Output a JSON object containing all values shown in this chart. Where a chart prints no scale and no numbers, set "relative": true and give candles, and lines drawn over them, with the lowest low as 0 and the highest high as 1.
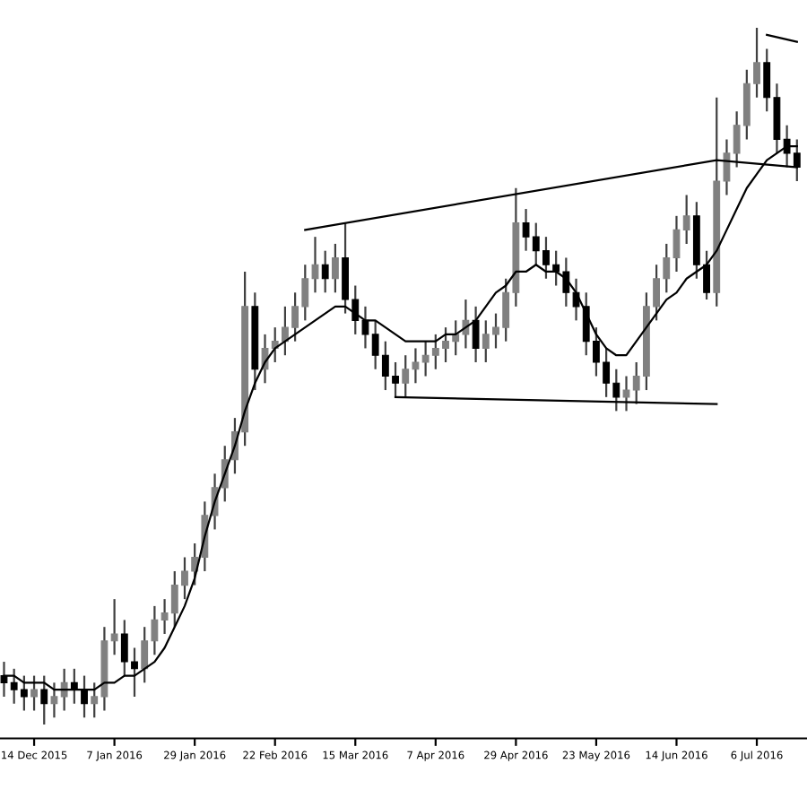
{
  "chart_data": {
    "type": "candlestick",
    "relative": true,
    "categories": [
      null,
      null,
      null,
      "14 Dec 2015",
      null,
      null,
      null,
      null,
      null,
      null,
      null,
      "7 Jan 2016",
      null,
      null,
      null,
      null,
      null,
      null,
      null,
      "29 Jan 2016",
      null,
      null,
      null,
      null,
      null,
      null,
      null,
      "22 Feb 2016",
      null,
      null,
      null,
      null,
      null,
      null,
      null,
      "15 Mar 2016",
      null,
      null,
      null,
      null,
      null,
      null,
      null,
      "7 Apr 2016",
      null,
      null,
      null,
      null,
      null,
      null,
      null,
      "29 Apr 2016",
      null,
      null,
      null,
      null,
      null,
      null,
      null,
      "23 May 2016",
      null,
      null,
      null,
      null,
      null,
      null,
      null,
      "14 Jun 2016",
      null,
      null,
      null,
      null,
      null,
      null,
      null,
      "6 Jul 2016",
      null,
      null,
      null,
      null
    ],
    "ohlc": [
      [
        0.07,
        0.09,
        0.04,
        0.06
      ],
      [
        0.06,
        0.08,
        0.03,
        0.05
      ],
      [
        0.05,
        0.07,
        0.02,
        0.04
      ],
      [
        0.04,
        0.07,
        0.02,
        0.05
      ],
      [
        0.05,
        0.07,
        0,
        0.03
      ],
      [
        0.03,
        0.06,
        0.01,
        0.04
      ],
      [
        0.04,
        0.08,
        0.02,
        0.06
      ],
      [
        0.06,
        0.08,
        0.03,
        0.05
      ],
      [
        0.05,
        0.07,
        0.01,
        0.03
      ],
      [
        0.03,
        0.06,
        0.01,
        0.04
      ],
      [
        0.04,
        0.14,
        0.02,
        0.12
      ],
      [
        0.12,
        0.18,
        0.1,
        0.13
      ],
      [
        0.13,
        0.15,
        0.07,
        0.09
      ],
      [
        0.09,
        0.11,
        0.04,
        0.08
      ],
      [
        0.08,
        0.14,
        0.06,
        0.12
      ],
      [
        0.12,
        0.17,
        0.1,
        0.15
      ],
      [
        0.15,
        0.18,
        0.13,
        0.16
      ],
      [
        0.16,
        0.22,
        0.14,
        0.2
      ],
      [
        0.2,
        0.24,
        0.18,
        0.22
      ],
      [
        0.22,
        0.26,
        0.2,
        0.24
      ],
      [
        0.24,
        0.32,
        0.22,
        0.3
      ],
      [
        0.3,
        0.36,
        0.28,
        0.34
      ],
      [
        0.34,
        0.4,
        0.32,
        0.38
      ],
      [
        0.38,
        0.44,
        0.36,
        0.42
      ],
      [
        0.42,
        0.65,
        0.4,
        0.6
      ],
      [
        0.6,
        0.62,
        0.48,
        0.51
      ],
      [
        0.51,
        0.56,
        0.49,
        0.54
      ],
      [
        0.54,
        0.57,
        0.52,
        0.55
      ],
      [
        0.55,
        0.6,
        0.53,
        0.57
      ],
      [
        0.57,
        0.62,
        0.55,
        0.6
      ],
      [
        0.6,
        0.66,
        0.58,
        0.64
      ],
      [
        0.64,
        0.7,
        0.62,
        0.66
      ],
      [
        0.66,
        0.68,
        0.62,
        0.64
      ],
      [
        0.64,
        0.69,
        0.62,
        0.67
      ],
      [
        0.67,
        0.72,
        0.59,
        0.61
      ],
      [
        0.61,
        0.63,
        0.56,
        0.58
      ],
      [
        0.58,
        0.6,
        0.54,
        0.56
      ],
      [
        0.56,
        0.58,
        0.51,
        0.53
      ],
      [
        0.53,
        0.55,
        0.48,
        0.5
      ],
      [
        0.5,
        0.52,
        0.47,
        0.49
      ],
      [
        0.49,
        0.53,
        0.47,
        0.51
      ],
      [
        0.51,
        0.54,
        0.49,
        0.52
      ],
      [
        0.52,
        0.55,
        0.5,
        0.53
      ],
      [
        0.53,
        0.56,
        0.51,
        0.54
      ],
      [
        0.54,
        0.57,
        0.52,
        0.55
      ],
      [
        0.55,
        0.58,
        0.53,
        0.56
      ],
      [
        0.56,
        0.61,
        0.54,
        0.58
      ],
      [
        0.58,
        0.6,
        0.52,
        0.54
      ],
      [
        0.54,
        0.58,
        0.52,
        0.56
      ],
      [
        0.56,
        0.59,
        0.54,
        0.57
      ],
      [
        0.57,
        0.64,
        0.55,
        0.62
      ],
      [
        0.62,
        0.77,
        0.6,
        0.72
      ],
      [
        0.72,
        0.74,
        0.68,
        0.7
      ],
      [
        0.7,
        0.72,
        0.66,
        0.68
      ],
      [
        0.68,
        0.7,
        0.64,
        0.66
      ],
      [
        0.66,
        0.68,
        0.63,
        0.65
      ],
      [
        0.65,
        0.67,
        0.6,
        0.62
      ],
      [
        0.62,
        0.64,
        0.58,
        0.6
      ],
      [
        0.6,
        0.62,
        0.53,
        0.55
      ],
      [
        0.55,
        0.57,
        0.5,
        0.52
      ],
      [
        0.52,
        0.54,
        0.47,
        0.49
      ],
      [
        0.49,
        0.51,
        0.45,
        0.47
      ],
      [
        0.47,
        0.5,
        0.45,
        0.48
      ],
      [
        0.48,
        0.52,
        0.46,
        0.5
      ],
      [
        0.5,
        0.62,
        0.48,
        0.6
      ],
      [
        0.6,
        0.66,
        0.58,
        0.64
      ],
      [
        0.64,
        0.69,
        0.62,
        0.67
      ],
      [
        0.67,
        0.73,
        0.65,
        0.71
      ],
      [
        0.71,
        0.76,
        0.69,
        0.73
      ],
      [
        0.73,
        0.75,
        0.64,
        0.66
      ],
      [
        0.66,
        0.68,
        0.61,
        0.62
      ],
      [
        0.62,
        0.9,
        0.6,
        0.78
      ],
      [
        0.78,
        0.84,
        0.76,
        0.82
      ],
      [
        0.82,
        0.88,
        0.8,
        0.86
      ],
      [
        0.86,
        0.94,
        0.84,
        0.92
      ],
      [
        0.92,
        1,
        0.9,
        0.95
      ],
      [
        0.95,
        0.97,
        0.88,
        0.9
      ],
      [
        0.9,
        0.92,
        0.82,
        0.84
      ],
      [
        0.84,
        0.86,
        0.8,
        0.82
      ],
      [
        0.82,
        0.84,
        0.78,
        0.8
      ]
    ],
    "colors": [
      "#000000",
      "#000000",
      "#000000",
      "#808080",
      "#000000",
      "#808080",
      "#808080",
      "#000000",
      "#000000",
      "#808080",
      "#808080",
      "#808080",
      "#000000",
      "#000000",
      "#808080",
      "#808080",
      "#808080",
      "#808080",
      "#808080",
      "#808080",
      "#808080",
      "#808080",
      "#808080",
      "#808080",
      "#808080",
      "#000000",
      "#808080",
      "#808080",
      "#808080",
      "#808080",
      "#808080",
      "#808080",
      "#000000",
      "#808080",
      "#000000",
      "#000000",
      "#000000",
      "#000000",
      "#000000",
      "#000000",
      "#808080",
      "#808080",
      "#808080",
      "#808080",
      "#808080",
      "#808080",
      "#808080",
      "#000000",
      "#808080",
      "#808080",
      "#808080",
      "#808080",
      "#000000",
      "#000000",
      "#000000",
      "#000000",
      "#000000",
      "#000000",
      "#000000",
      "#000000",
      "#000000",
      "#000000",
      "#808080",
      "#808080",
      "#808080",
      "#808080",
      "#808080",
      "#808080",
      "#808080",
      "#000000",
      "#000000",
      "#808080",
      "#808080",
      "#808080",
      "#808080",
      "#808080",
      "#000000",
      "#000000",
      "#000000",
      "#000000"
    ],
    "series": [
      {
        "type": "line",
        "color": "#000000",
        "values": [
          0.07,
          0.07,
          0.06,
          0.06,
          0.06,
          0.05,
          0.05,
          0.05,
          0.05,
          0.05,
          0.06,
          0.06,
          0.07,
          0.07,
          0.08,
          0.09,
          0.11,
          0.14,
          0.17,
          0.21,
          0.27,
          0.32,
          0.36,
          0.4,
          0.45,
          0.49,
          0.52,
          0.54,
          0.55,
          0.56,
          0.57,
          0.58,
          0.59,
          0.6,
          0.6,
          0.59,
          0.58,
          0.58,
          0.57,
          0.56,
          0.55,
          0.55,
          0.55,
          0.55,
          0.56,
          0.56,
          0.57,
          0.58,
          0.6,
          0.62,
          0.63,
          0.65,
          0.65,
          0.66,
          0.65,
          0.65,
          0.64,
          0.62,
          0.59,
          0.56,
          0.54,
          0.53,
          0.53,
          0.55,
          0.57,
          0.59,
          0.61,
          0.62,
          0.64,
          0.65,
          0.66,
          0.68,
          0.71,
          0.74,
          0.77,
          0.79,
          0.81,
          0.82,
          0.83,
          0.83
        ]
      },
      {
        "type": "line",
        "color": "#000000",
        "values": [
          null,
          null,
          null,
          null,
          null,
          null,
          null,
          null,
          null,
          null,
          null,
          null,
          null,
          null,
          null,
          null,
          null,
          null,
          null,
          null,
          null,
          null,
          null,
          null,
          null,
          null,
          null,
          null,
          null,
          null,
          0.71,
          null,
          null,
          null,
          null,
          null,
          null,
          null,
          null,
          null,
          null,
          null,
          null,
          null,
          null,
          null,
          null,
          null,
          null,
          null,
          null,
          null,
          null,
          null,
          null,
          null,
          null,
          null,
          null,
          null,
          null,
          null,
          null,
          null,
          null,
          null,
          null,
          null,
          null,
          null,
          null,
          0.81,
          null,
          null,
          null,
          null,
          null,
          null,
          null,
          0.8
        ]
      },
      {
        "type": "line",
        "color": "#000000",
        "values": [
          null,
          null,
          null,
          null,
          null,
          null,
          null,
          null,
          null,
          null,
          null,
          null,
          null,
          null,
          null,
          null,
          null,
          null,
          null,
          null,
          null,
          null,
          null,
          null,
          null,
          null,
          null,
          null,
          null,
          null,
          null,
          null,
          null,
          null,
          null,
          null,
          null,
          null,
          null,
          0.47,
          null,
          null,
          null,
          null,
          null,
          null,
          null,
          null,
          null,
          null,
          null,
          null,
          null,
          null,
          null,
          null,
          null,
          null,
          null,
          null,
          null,
          null,
          null,
          null,
          null,
          null,
          null,
          null,
          null,
          null,
          null,
          0.46,
          null,
          null,
          null,
          null,
          null,
          null,
          null,
          null
        ]
      },
      {
        "type": "line",
        "color": "#000000",
        "values": [
          null,
          null,
          null,
          null,
          null,
          null,
          null,
          null,
          null,
          null,
          null,
          null,
          null,
          null,
          null,
          null,
          null,
          null,
          null,
          null,
          null,
          null,
          null,
          null,
          null,
          null,
          null,
          null,
          null,
          null,
          null,
          null,
          null,
          null,
          null,
          null,
          null,
          null,
          null,
          null,
          null,
          null,
          null,
          null,
          null,
          null,
          null,
          null,
          null,
          null,
          null,
          null,
          null,
          null,
          null,
          null,
          null,
          null,
          null,
          null,
          null,
          null,
          null,
          null,
          null,
          null,
          null,
          null,
          null,
          null,
          null,
          null,
          null,
          null,
          null,
          null,
          0.99,
          null,
          null,
          0.98
        ]
      }
    ]
  }
}
